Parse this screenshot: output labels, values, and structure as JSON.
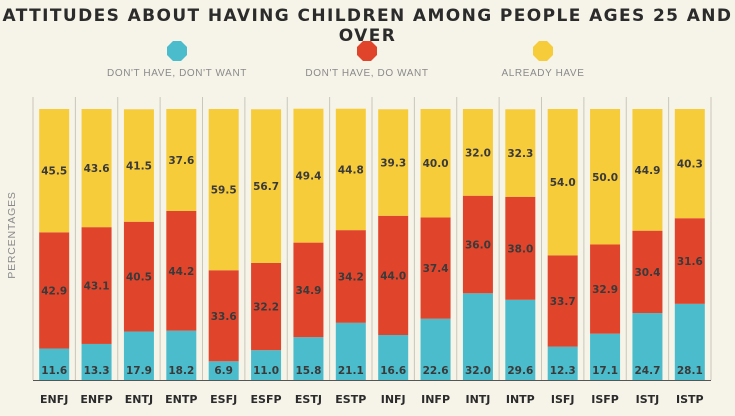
{
  "title": "ATTITUDES ABOUT HAVING CHILDREN AMONG PEOPLE AGES 25 AND OVER",
  "colors": {
    "background": "#f6f3e8",
    "dont_want": "#4bbccc",
    "do_want": "#e0452c",
    "already_have": "#f7cc3b"
  },
  "legend": [
    {
      "label": "DON'T HAVE, DON'T WANT",
      "color": "#4bbccc",
      "icon": "octagon-dot-icon"
    },
    {
      "label": "DON'T HAVE, DO WANT",
      "color": "#e0452c",
      "icon": "octagon-dot-icon"
    },
    {
      "label": "ALREADY HAVE",
      "color": "#f7cc3b",
      "icon": "octagon-dot-icon"
    }
  ],
  "chart_data": {
    "type": "bar",
    "stacked": true,
    "title": "ATTITUDES ABOUT HAVING CHILDREN AMONG PEOPLE AGES 25 AND OVER",
    "xlabel": "",
    "ylabel": "PERCENTAGES",
    "ylim": [
      0,
      100
    ],
    "grid": false,
    "legend_position": "top",
    "categories": [
      "ENFJ",
      "ENFP",
      "ENTJ",
      "ENTP",
      "ESFJ",
      "ESFP",
      "ESTJ",
      "ESTP",
      "INFJ",
      "INFP",
      "INTJ",
      "INTP",
      "ISFJ",
      "ISFP",
      "ISTJ",
      "ISTP"
    ],
    "series": [
      {
        "name": "DON'T HAVE, DON'T WANT",
        "values": [
          11.6,
          13.3,
          17.9,
          18.2,
          6.9,
          11.0,
          15.8,
          21.1,
          16.6,
          22.6,
          32.0,
          29.6,
          12.3,
          17.1,
          24.7,
          28.1
        ]
      },
      {
        "name": "DON'T HAVE, DO WANT",
        "values": [
          42.9,
          43.1,
          40.5,
          44.2,
          33.6,
          32.2,
          34.9,
          34.2,
          44.0,
          37.4,
          36.0,
          38.0,
          33.7,
          32.9,
          30.4,
          31.6
        ]
      },
      {
        "name": "ALREADY HAVE",
        "values": [
          45.5,
          43.6,
          41.5,
          37.6,
          59.5,
          56.7,
          49.4,
          44.8,
          39.3,
          40.0,
          32.0,
          32.3,
          54.0,
          50.0,
          44.9,
          40.3
        ]
      }
    ]
  }
}
